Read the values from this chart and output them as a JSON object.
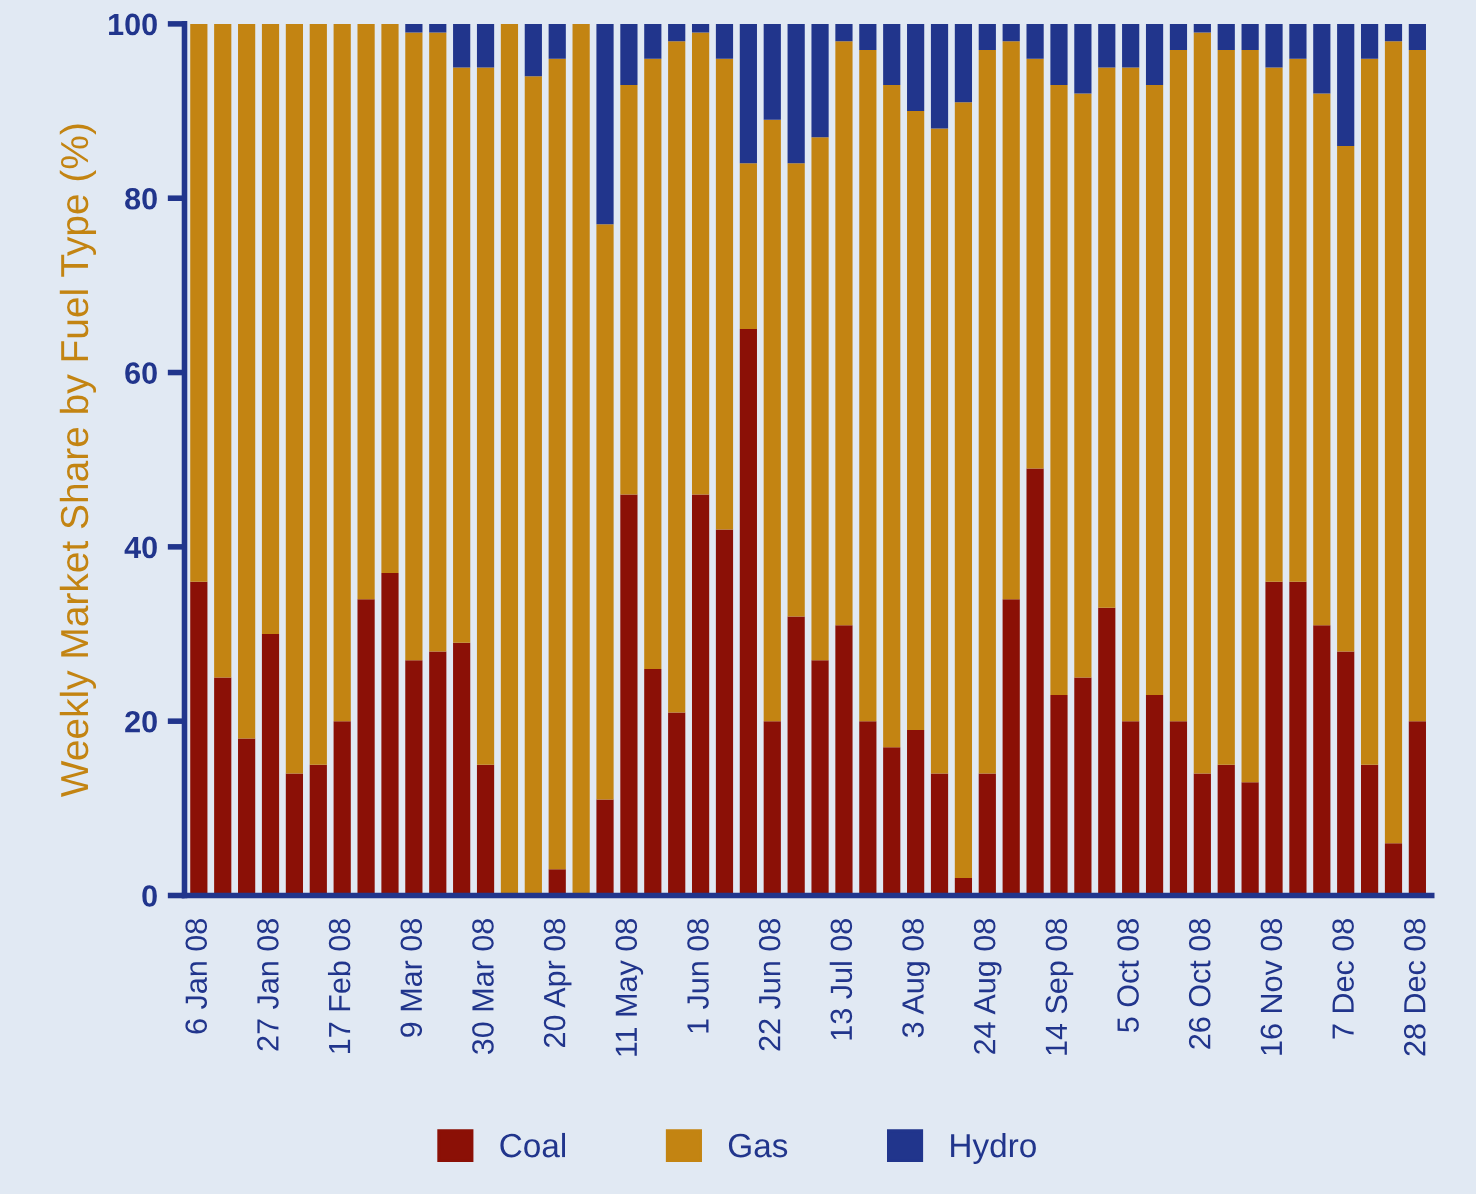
{
  "chart_data": {
    "type": "bar",
    "stacked": true,
    "ylabel": "Weekly Market Share by Fuel Type (%)",
    "categories": [
      "6 Jan 08",
      null,
      null,
      "27 Jan 08",
      null,
      null,
      "17 Feb 08",
      null,
      null,
      "9 Mar 08",
      null,
      null,
      "30 Mar 08",
      null,
      null,
      "20 Apr 08",
      null,
      null,
      "11 May 08",
      null,
      null,
      "1 Jun 08",
      null,
      null,
      "22 Jun 08",
      null,
      null,
      "13 Jul 08",
      null,
      null,
      "3 Aug 08",
      null,
      null,
      "24 Aug 08",
      null,
      null,
      "14 Sep 08",
      null,
      null,
      "5 Oct 08",
      null,
      null,
      "26 Oct 08",
      null,
      null,
      "16 Nov 08",
      null,
      null,
      "7 Dec 08",
      null,
      null,
      "28 Dec 08"
    ],
    "series": [
      {
        "name": "Coal",
        "color": "#8b1006",
        "values": [
          36,
          25,
          18,
          30,
          14,
          15,
          20,
          34,
          37,
          27,
          28,
          29,
          15,
          0,
          0,
          3,
          0,
          11,
          46,
          26,
          21,
          46,
          42,
          65,
          20,
          32,
          27,
          31,
          20,
          17,
          19,
          14,
          2,
          14,
          34,
          49,
          23,
          25,
          33,
          20,
          23,
          20,
          14,
          15,
          13,
          36,
          36,
          31,
          28,
          15,
          6,
          20
        ]
      },
      {
        "name": "Gas",
        "color": "#c38412",
        "values": [
          64,
          75,
          82,
          70,
          86,
          85,
          80,
          66,
          63,
          72,
          71,
          66,
          80,
          100,
          94,
          93,
          100,
          66,
          47,
          70,
          77,
          53,
          54,
          19,
          69,
          52,
          60,
          67,
          77,
          76,
          71,
          74,
          89,
          83,
          64,
          47,
          70,
          67,
          62,
          75,
          70,
          77,
          85,
          82,
          84,
          59,
          60,
          61,
          58,
          81,
          92,
          77
        ]
      },
      {
        "name": "Hydro",
        "color": "#21358c",
        "values": [
          0,
          0,
          0,
          0,
          0,
          0,
          0,
          0,
          0,
          1,
          1,
          5,
          5,
          0,
          6,
          4,
          0,
          23,
          7,
          4,
          2,
          1,
          4,
          16,
          11,
          16,
          13,
          2,
          3,
          7,
          10,
          12,
          9,
          3,
          2,
          4,
          7,
          8,
          5,
          5,
          7,
          3,
          1,
          3,
          3,
          5,
          4,
          8,
          14,
          4,
          2,
          3
        ]
      }
    ],
    "ylim": [
      0,
      100
    ],
    "yticks": [
      0,
      20,
      40,
      60,
      80,
      100
    ],
    "legend": "bottom"
  }
}
